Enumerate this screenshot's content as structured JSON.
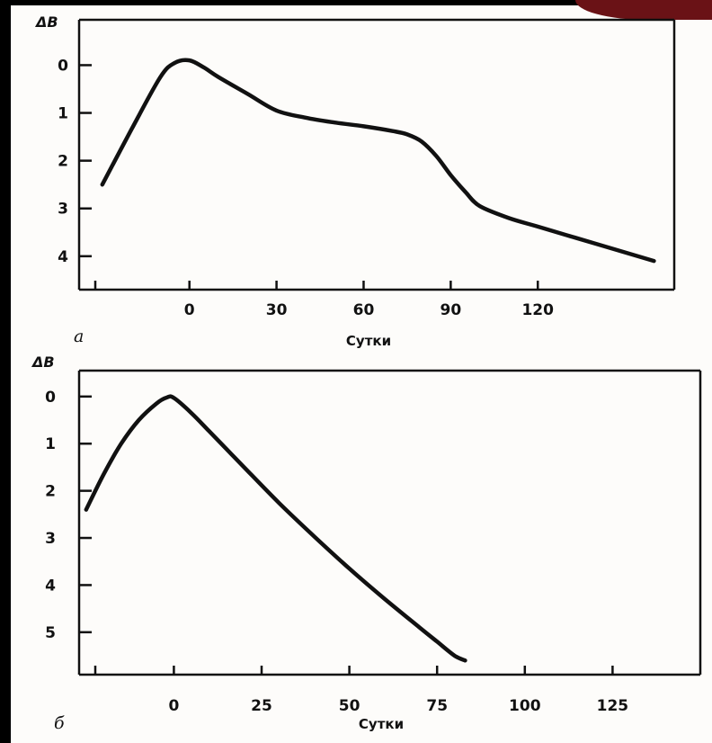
{
  "colors": {
    "paper": "#fdfcfa",
    "ink": "#111111",
    "background": "#000000",
    "stamp": "#6a1216"
  },
  "chart_data": [
    {
      "type": "line",
      "panel": "а",
      "ylabel": "ΔB",
      "xlabel": "Сутки",
      "y_inverted": true,
      "xlim": [
        -38,
        167
      ],
      "ylim": [
        -0.95,
        4.7
      ],
      "x_ticks": [
        0,
        30,
        60,
        90,
        120
      ],
      "x_tick_labels": [
        "0",
        "30",
        "60",
        "90",
        "120"
      ],
      "y_ticks": [
        0,
        1,
        2,
        3,
        4
      ],
      "y_tick_labels": [
        "0",
        "1",
        "2",
        "3",
        "4"
      ],
      "grid": false,
      "series": [
        {
          "x": [
            -30,
            -20,
            -10,
            -5,
            0,
            5,
            10,
            20,
            30,
            40,
            50,
            60,
            70,
            75,
            80,
            85,
            90,
            95,
            100,
            110,
            120,
            130,
            140,
            160
          ],
          "y": [
            2.5,
            1.35,
            0.25,
            -0.05,
            -0.1,
            0.05,
            0.25,
            0.6,
            0.95,
            1.1,
            1.2,
            1.28,
            1.38,
            1.45,
            1.6,
            1.9,
            2.3,
            2.65,
            2.95,
            3.2,
            3.38,
            3.56,
            3.74,
            4.1
          ]
        }
      ]
    },
    {
      "type": "line",
      "panel": "б",
      "ylabel": "ΔB",
      "xlabel": "Сутки",
      "y_inverted": true,
      "xlim": [
        -27,
        150
      ],
      "ylim": [
        -0.55,
        5.9
      ],
      "x_ticks": [
        0,
        25,
        50,
        75,
        100,
        125
      ],
      "x_tick_labels": [
        "0",
        "25",
        "50",
        "75",
        "100",
        "125"
      ],
      "y_ticks": [
        0,
        1,
        2,
        3,
        4,
        5
      ],
      "y_tick_labels": [
        "0",
        "1",
        "2",
        "3",
        "4",
        "5"
      ],
      "grid": false,
      "series": [
        {
          "x": [
            -25,
            -20,
            -15,
            -10,
            -5,
            -2,
            0,
            5,
            10,
            20,
            30,
            40,
            50,
            60,
            70,
            75,
            80,
            83
          ],
          "y": [
            2.4,
            1.65,
            1.0,
            0.5,
            0.15,
            0.02,
            0.03,
            0.35,
            0.73,
            1.5,
            2.26,
            2.97,
            3.65,
            4.29,
            4.9,
            5.2,
            5.5,
            5.6
          ]
        }
      ]
    }
  ]
}
